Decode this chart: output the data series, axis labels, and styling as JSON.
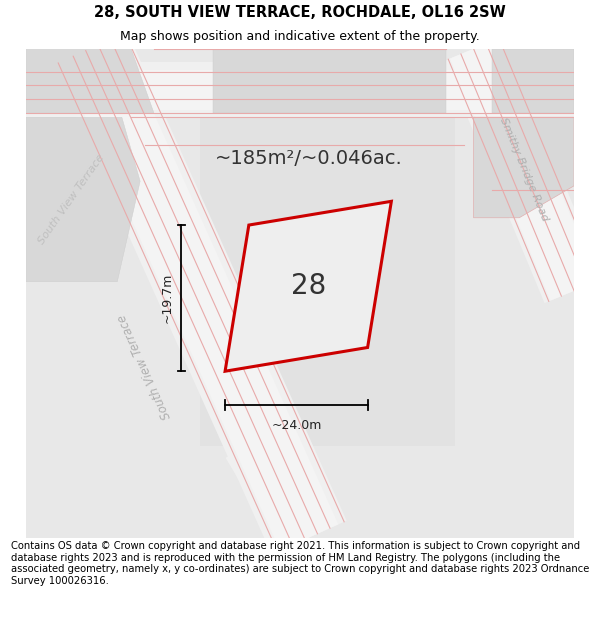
{
  "title": "28, SOUTH VIEW TERRACE, ROCHDALE, OL16 2SW",
  "subtitle": "Map shows position and indicative extent of the property.",
  "footer": "Contains OS data © Crown copyright and database right 2021. This information is subject to Crown copyright and database rights 2023 and is reproduced with the permission of HM Land Registry. The polygons (including the associated geometry, namely x, y co-ordinates) are subject to Crown copyright and database rights 2023 Ordnance Survey 100026316.",
  "area_text": "~185m²/~0.046ac.",
  "width_text": "~24.0m",
  "height_text": "~19.7m",
  "plot_label": "28",
  "map_bg": "#e8e8e8",
  "block_color": "#d8d8d8",
  "road_color": "#f2f2f2",
  "plot_line_color": "#cc0000",
  "plot_fill_color": "#eeeeee",
  "pink_line_color": "#e8aaaa",
  "street_label_color": "#b0b0b0",
  "dim_color": "#222222",
  "title_fontsize": 10.5,
  "subtitle_fontsize": 9,
  "footer_fontsize": 7.2,
  "area_fontsize": 14
}
